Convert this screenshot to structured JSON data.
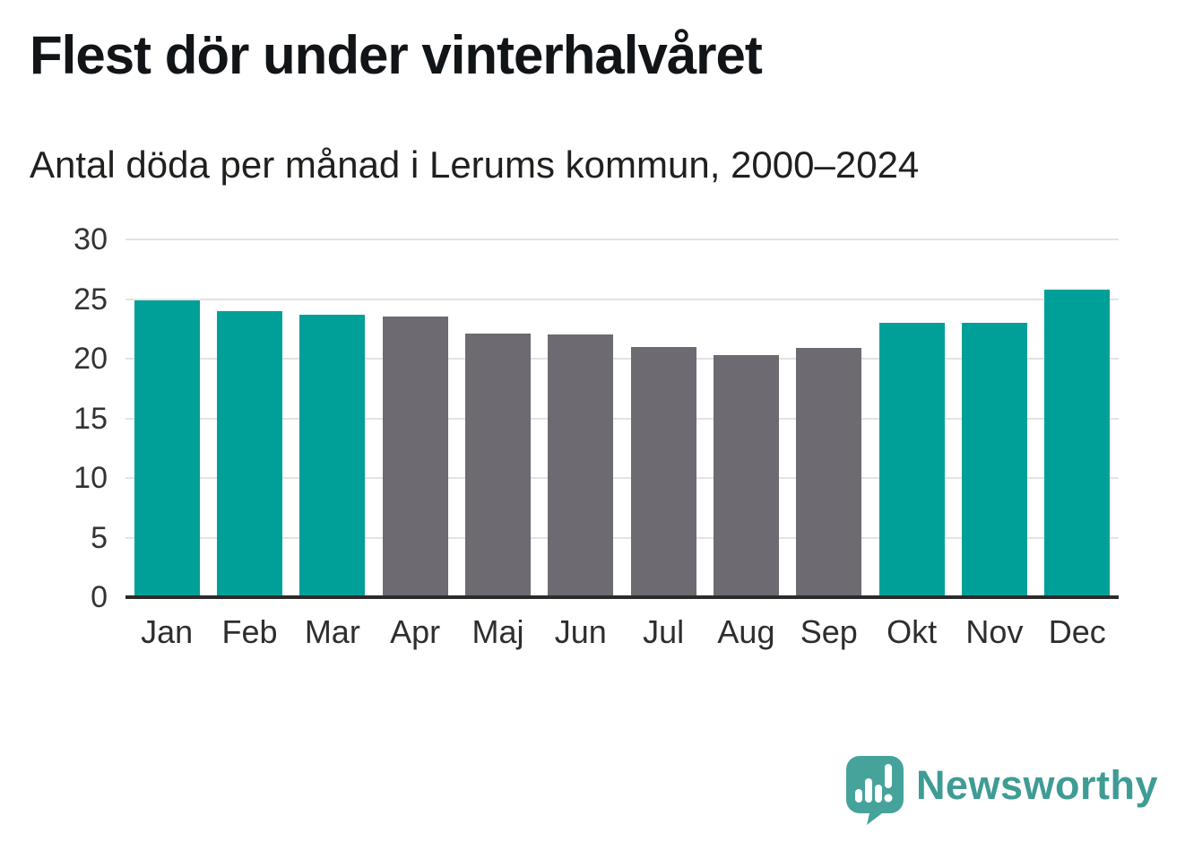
{
  "title": "Flest dör under vinterhalvåret",
  "subtitle": "Antal döda per månad i Lerums kommun, 2000–2024",
  "chart_data": {
    "type": "bar",
    "title": "Flest dör under vinterhalvåret",
    "subtitle": "Antal döda per månad i Lerums kommun, 2000–2024",
    "categories": [
      "Jan",
      "Feb",
      "Mar",
      "Apr",
      "Maj",
      "Jun",
      "Jul",
      "Aug",
      "Sep",
      "Okt",
      "Nov",
      "Dec"
    ],
    "values": [
      24.9,
      24.0,
      23.7,
      23.5,
      22.1,
      22.0,
      21.0,
      20.3,
      20.9,
      23.0,
      23.0,
      25.8
    ],
    "bar_color_keys": [
      "highlight",
      "highlight",
      "highlight",
      "muted",
      "muted",
      "muted",
      "muted",
      "muted",
      "muted",
      "highlight",
      "highlight",
      "highlight"
    ],
    "highlighted_categories": [
      "Jan",
      "Feb",
      "Mar",
      "Okt",
      "Nov",
      "Dec"
    ],
    "xlabel": "",
    "ylabel": "",
    "ylim": [
      0,
      30
    ],
    "yticks": [
      30,
      25,
      20,
      15,
      10,
      5,
      0
    ],
    "grid": true,
    "legend": "none"
  },
  "colors": {
    "highlight": "#00A099",
    "muted": "#6E6A71",
    "gridline": "#E3E3E3",
    "axis_line": "#2B2B2B",
    "text": "#1E211D"
  },
  "branding": {
    "logo_text": "Newsworthy",
    "logo_icon": "speech-bubble-bar-chart-icon",
    "logo_color": "#46A39C",
    "logo_text_color": "#3E9C95"
  }
}
